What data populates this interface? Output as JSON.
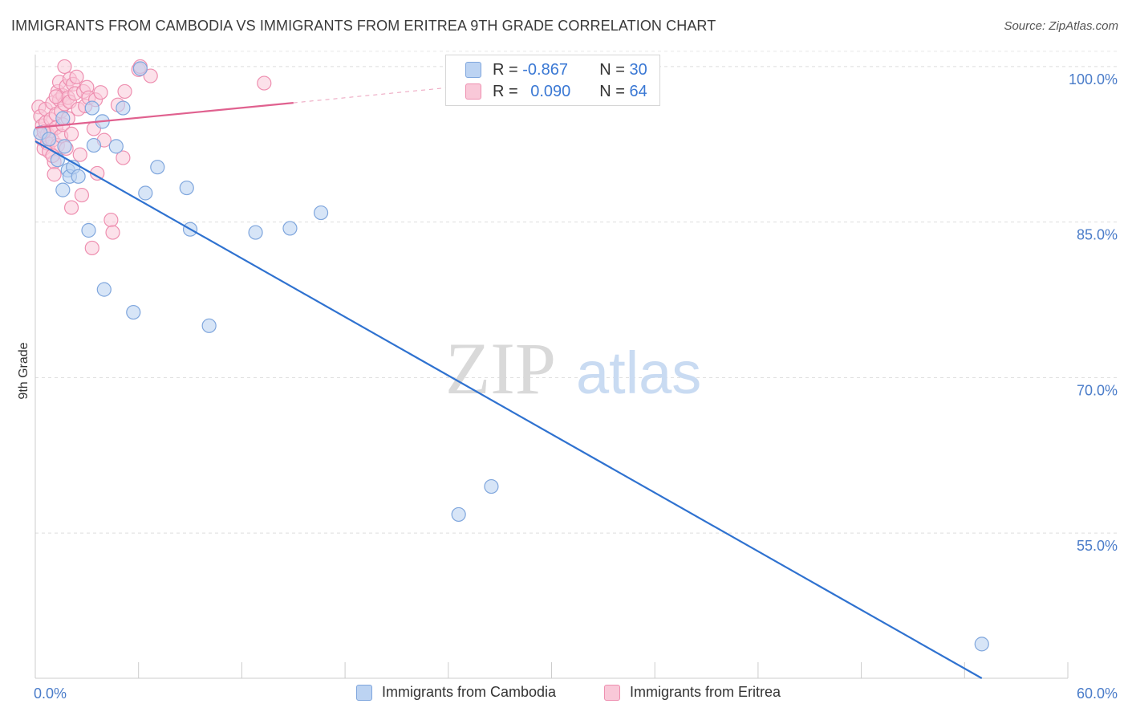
{
  "title": "IMMIGRANTS FROM CAMBODIA VS IMMIGRANTS FROM ERITREA 9TH GRADE CORRELATION CHART",
  "source": "Source: ZipAtlas.com",
  "watermark": {
    "zip": "ZIP",
    "atlas": "atlas"
  },
  "colors": {
    "cambodia_fill": "#bcd3f2",
    "cambodia_stroke": "#7fa6dd",
    "cambodia_line": "#2f72d0",
    "eritrea_fill": "#f9c8d8",
    "eritrea_stroke": "#ee8fb0",
    "eritrea_line": "#e0618f"
  },
  "legend": {
    "cambodia": {
      "r_label": "R = ",
      "r_value": "-0.867",
      "n_label": "N = ",
      "n_value": "30"
    },
    "eritrea": {
      "r_label": "R = ",
      "r_value": "0.090",
      "n_label": "N = ",
      "n_value": "64"
    }
  },
  "bottom_legend": {
    "cambodia": "Immigrants from Cambodia",
    "eritrea": "Immigrants from Eritrea"
  },
  "chart_data": {
    "type": "scatter",
    "ylabel": "9th Grade",
    "xlim": [
      0,
      60
    ],
    "ylim": [
      41,
      101
    ],
    "y_ticks": [
      {
        "value": 100,
        "label": "100.0%"
      },
      {
        "value": 85,
        "label": "85.0%"
      },
      {
        "value": 70,
        "label": "70.0%"
      },
      {
        "value": 55,
        "label": "55.0%"
      }
    ],
    "x_tick_labels": [
      {
        "value": 0,
        "label": "0.0%"
      },
      {
        "value": 60,
        "label": "60.0%"
      }
    ],
    "x_minor_ticks": [
      0,
      6,
      12,
      18,
      24,
      30,
      36,
      42,
      48,
      54,
      60
    ],
    "series": [
      {
        "name": "Immigrants from Cambodia",
        "trend": {
          "x0": 0,
          "y0": 92.8,
          "x1": 55.0,
          "y1": 41.0
        },
        "points": [
          [
            0.3,
            93.6
          ],
          [
            1.3,
            91.0
          ],
          [
            1.6,
            88.1
          ],
          [
            1.6,
            95.0
          ],
          [
            1.7,
            92.3
          ],
          [
            1.9,
            90.0
          ],
          [
            2.0,
            89.4
          ],
          [
            2.2,
            90.3
          ],
          [
            2.5,
            89.4
          ],
          [
            3.1,
            84.2
          ],
          [
            3.3,
            96.0
          ],
          [
            3.4,
            92.4
          ],
          [
            3.9,
            94.7
          ],
          [
            4.0,
            78.5
          ],
          [
            4.7,
            92.3
          ],
          [
            5.1,
            96.0
          ],
          [
            5.7,
            76.3
          ],
          [
            6.1,
            99.8
          ],
          [
            6.4,
            87.8
          ],
          [
            7.1,
            90.3
          ],
          [
            8.8,
            88.3
          ],
          [
            9.0,
            84.3
          ],
          [
            10.1,
            75.0
          ],
          [
            12.8,
            84.0
          ],
          [
            14.8,
            84.4
          ],
          [
            16.6,
            85.9
          ],
          [
            24.6,
            56.8
          ],
          [
            26.5,
            59.5
          ],
          [
            55.0,
            44.3
          ],
          [
            0.8,
            93.0
          ]
        ]
      },
      {
        "name": "Immigrants from Eritrea",
        "trend": {
          "x0": 0,
          "y0": 94.1,
          "x1": 15.0,
          "y1": 96.5
        },
        "trend_dashed": {
          "x0": 15.0,
          "y0": 96.5,
          "x1": 26.0,
          "y1": 98.3
        },
        "points": [
          [
            0.2,
            96.1
          ],
          [
            0.3,
            95.2
          ],
          [
            0.4,
            94.3
          ],
          [
            0.4,
            93.0
          ],
          [
            0.5,
            92.1
          ],
          [
            0.6,
            95.9
          ],
          [
            0.6,
            94.6
          ],
          [
            0.7,
            93.5
          ],
          [
            0.7,
            92.6
          ],
          [
            0.8,
            91.8
          ],
          [
            0.9,
            94.9
          ],
          [
            0.9,
            93.8
          ],
          [
            1.0,
            96.5
          ],
          [
            1.0,
            92.9
          ],
          [
            1.1,
            90.8
          ],
          [
            1.1,
            89.6
          ],
          [
            1.2,
            95.4
          ],
          [
            1.2,
            94.1
          ],
          [
            1.3,
            97.6
          ],
          [
            1.3,
            92.4
          ],
          [
            1.4,
            98.5
          ],
          [
            1.4,
            96.8
          ],
          [
            1.5,
            95.7
          ],
          [
            1.5,
            93.3
          ],
          [
            1.6,
            97.2
          ],
          [
            1.6,
            94.4
          ],
          [
            1.7,
            100.0
          ],
          [
            1.7,
            96.4
          ],
          [
            1.8,
            98.1
          ],
          [
            1.8,
            92.1
          ],
          [
            1.9,
            97.0
          ],
          [
            1.9,
            95.0
          ],
          [
            2.0,
            98.8
          ],
          [
            2.0,
            96.6
          ],
          [
            2.1,
            86.4
          ],
          [
            2.1,
            93.5
          ],
          [
            2.2,
            98.3
          ],
          [
            2.3,
            97.4
          ],
          [
            2.4,
            99.0
          ],
          [
            2.5,
            95.9
          ],
          [
            2.6,
            91.5
          ],
          [
            2.7,
            87.6
          ],
          [
            2.8,
            97.6
          ],
          [
            2.9,
            96.2
          ],
          [
            3.0,
            98.0
          ],
          [
            3.1,
            97.0
          ],
          [
            3.3,
            82.5
          ],
          [
            3.4,
            94.0
          ],
          [
            3.5,
            96.8
          ],
          [
            3.6,
            89.7
          ],
          [
            3.8,
            97.5
          ],
          [
            4.0,
            92.9
          ],
          [
            4.4,
            85.2
          ],
          [
            4.5,
            84.0
          ],
          [
            4.8,
            96.3
          ],
          [
            5.1,
            91.2
          ],
          [
            5.2,
            97.6
          ],
          [
            6.0,
            99.7
          ],
          [
            6.1,
            100.0
          ],
          [
            6.7,
            99.1
          ],
          [
            13.3,
            98.4
          ],
          [
            0.5,
            93.7
          ],
          [
            1.0,
            91.4
          ],
          [
            1.2,
            97.1
          ]
        ]
      }
    ]
  }
}
